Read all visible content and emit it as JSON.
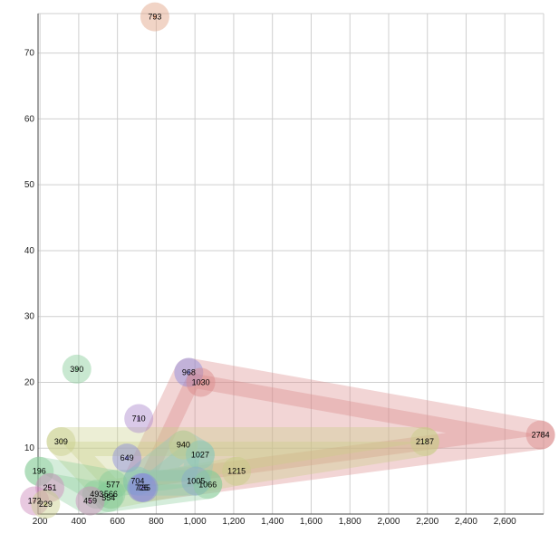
{
  "chart_data": {
    "type": "scatter",
    "title": "",
    "xlabel": "",
    "ylabel": "",
    "xlim": [
      190,
      2800
    ],
    "ylim": [
      0,
      76
    ],
    "x_ticks": [
      200,
      400,
      600,
      800,
      1000,
      1200,
      1400,
      1600,
      1800,
      2000,
      2200,
      2400,
      2600
    ],
    "x_tick_labels": [
      "200",
      "400",
      "600",
      "800",
      "1,000",
      "1,200",
      "1,400",
      "1,600",
      "1,800",
      "2,000",
      "2,200",
      "2,400",
      "2,600"
    ],
    "y_ticks": [
      10,
      20,
      30,
      40,
      50,
      60,
      70
    ],
    "y_tick_labels": [
      "10",
      "20",
      "30",
      "40",
      "50",
      "60",
      "70"
    ],
    "grid": true,
    "legend": "none",
    "colors": {
      "red": "#d98888",
      "olive": "#c8cd88",
      "green": "#88cc99",
      "blue": "#8888dd",
      "pink": "#cc88bb",
      "peach": "#e0a080",
      "teal": "#88c8bb"
    },
    "points": [
      {
        "label": "793",
        "x": 793,
        "y": 75.5,
        "color": "#e0a080"
      },
      {
        "label": "390",
        "x": 390,
        "y": 22,
        "color": "#88cc99"
      },
      {
        "label": "968",
        "x": 968,
        "y": 21.5,
        "color": "#8888dd"
      },
      {
        "label": "1030",
        "x": 1030,
        "y": 20,
        "color": "#d98888"
      },
      {
        "label": "710",
        "x": 710,
        "y": 14.5,
        "color": "#aa88cc"
      },
      {
        "label": "309",
        "x": 309,
        "y": 11,
        "color": "#c8cd88"
      },
      {
        "label": "2187",
        "x": 2187,
        "y": 11,
        "color": "#c8cd88"
      },
      {
        "label": "2784",
        "x": 2784,
        "y": 12,
        "color": "#d98888"
      },
      {
        "label": "940",
        "x": 940,
        "y": 10.5,
        "color": "#c8cd88"
      },
      {
        "label": "1027",
        "x": 1027,
        "y": 9,
        "color": "#88c8bb"
      },
      {
        "label": "649",
        "x": 649,
        "y": 8.5,
        "color": "#8888dd"
      },
      {
        "label": "1215",
        "x": 1215,
        "y": 6.5,
        "color": "#c8cd88"
      },
      {
        "label": "196",
        "x": 196,
        "y": 6.5,
        "color": "#88cc99"
      },
      {
        "label": "704",
        "x": 704,
        "y": 5,
        "color": "#88c8bb"
      },
      {
        "label": "577",
        "x": 577,
        "y": 4.5,
        "color": "#88cc99"
      },
      {
        "label": "1005",
        "x": 1005,
        "y": 5,
        "color": "#88aacc"
      },
      {
        "label": "1066",
        "x": 1066,
        "y": 4.5,
        "color": "#88cc99"
      },
      {
        "label": "735",
        "x": 735,
        "y": 4,
        "color": "#8888dd"
      },
      {
        "label": "725",
        "x": 725,
        "y": 4,
        "color": "#8888dd"
      },
      {
        "label": "251",
        "x": 251,
        "y": 4,
        "color": "#cc88bb"
      },
      {
        "label": "493",
        "x": 493,
        "y": 3,
        "color": "#88cc99"
      },
      {
        "label": "566",
        "x": 566,
        "y": 3,
        "color": "#88cc99"
      },
      {
        "label": "554",
        "x": 554,
        "y": 2.5,
        "color": "#88cc99"
      },
      {
        "label": "459",
        "x": 459,
        "y": 2,
        "color": "#cc88bb"
      },
      {
        "label": "172",
        "x": 172,
        "y": 2,
        "color": "#cc88bb"
      },
      {
        "label": "229",
        "x": 229,
        "y": 1.5,
        "color": "#c8cd88"
      }
    ],
    "hulls": [
      {
        "color": "#d98888",
        "points": [
          [
            968,
            21.5
          ],
          [
            2784,
            12
          ],
          [
            725,
            4
          ],
          [
            704,
            5
          ]
        ]
      },
      {
        "color": "#c8cd88",
        "points": [
          [
            309,
            11
          ],
          [
            2187,
            11
          ],
          [
            1215,
            6.5
          ],
          [
            566,
            3
          ]
        ]
      },
      {
        "color": "#88cc99",
        "points": [
          [
            196,
            6.5
          ],
          [
            577,
            4.5
          ],
          [
            1066,
            4.5
          ],
          [
            554,
            2.5
          ],
          [
            459,
            2
          ]
        ]
      },
      {
        "color": "#88c8bb",
        "points": [
          [
            704,
            5
          ],
          [
            940,
            10.5
          ],
          [
            1027,
            9
          ],
          [
            1005,
            5
          ]
        ]
      }
    ]
  }
}
